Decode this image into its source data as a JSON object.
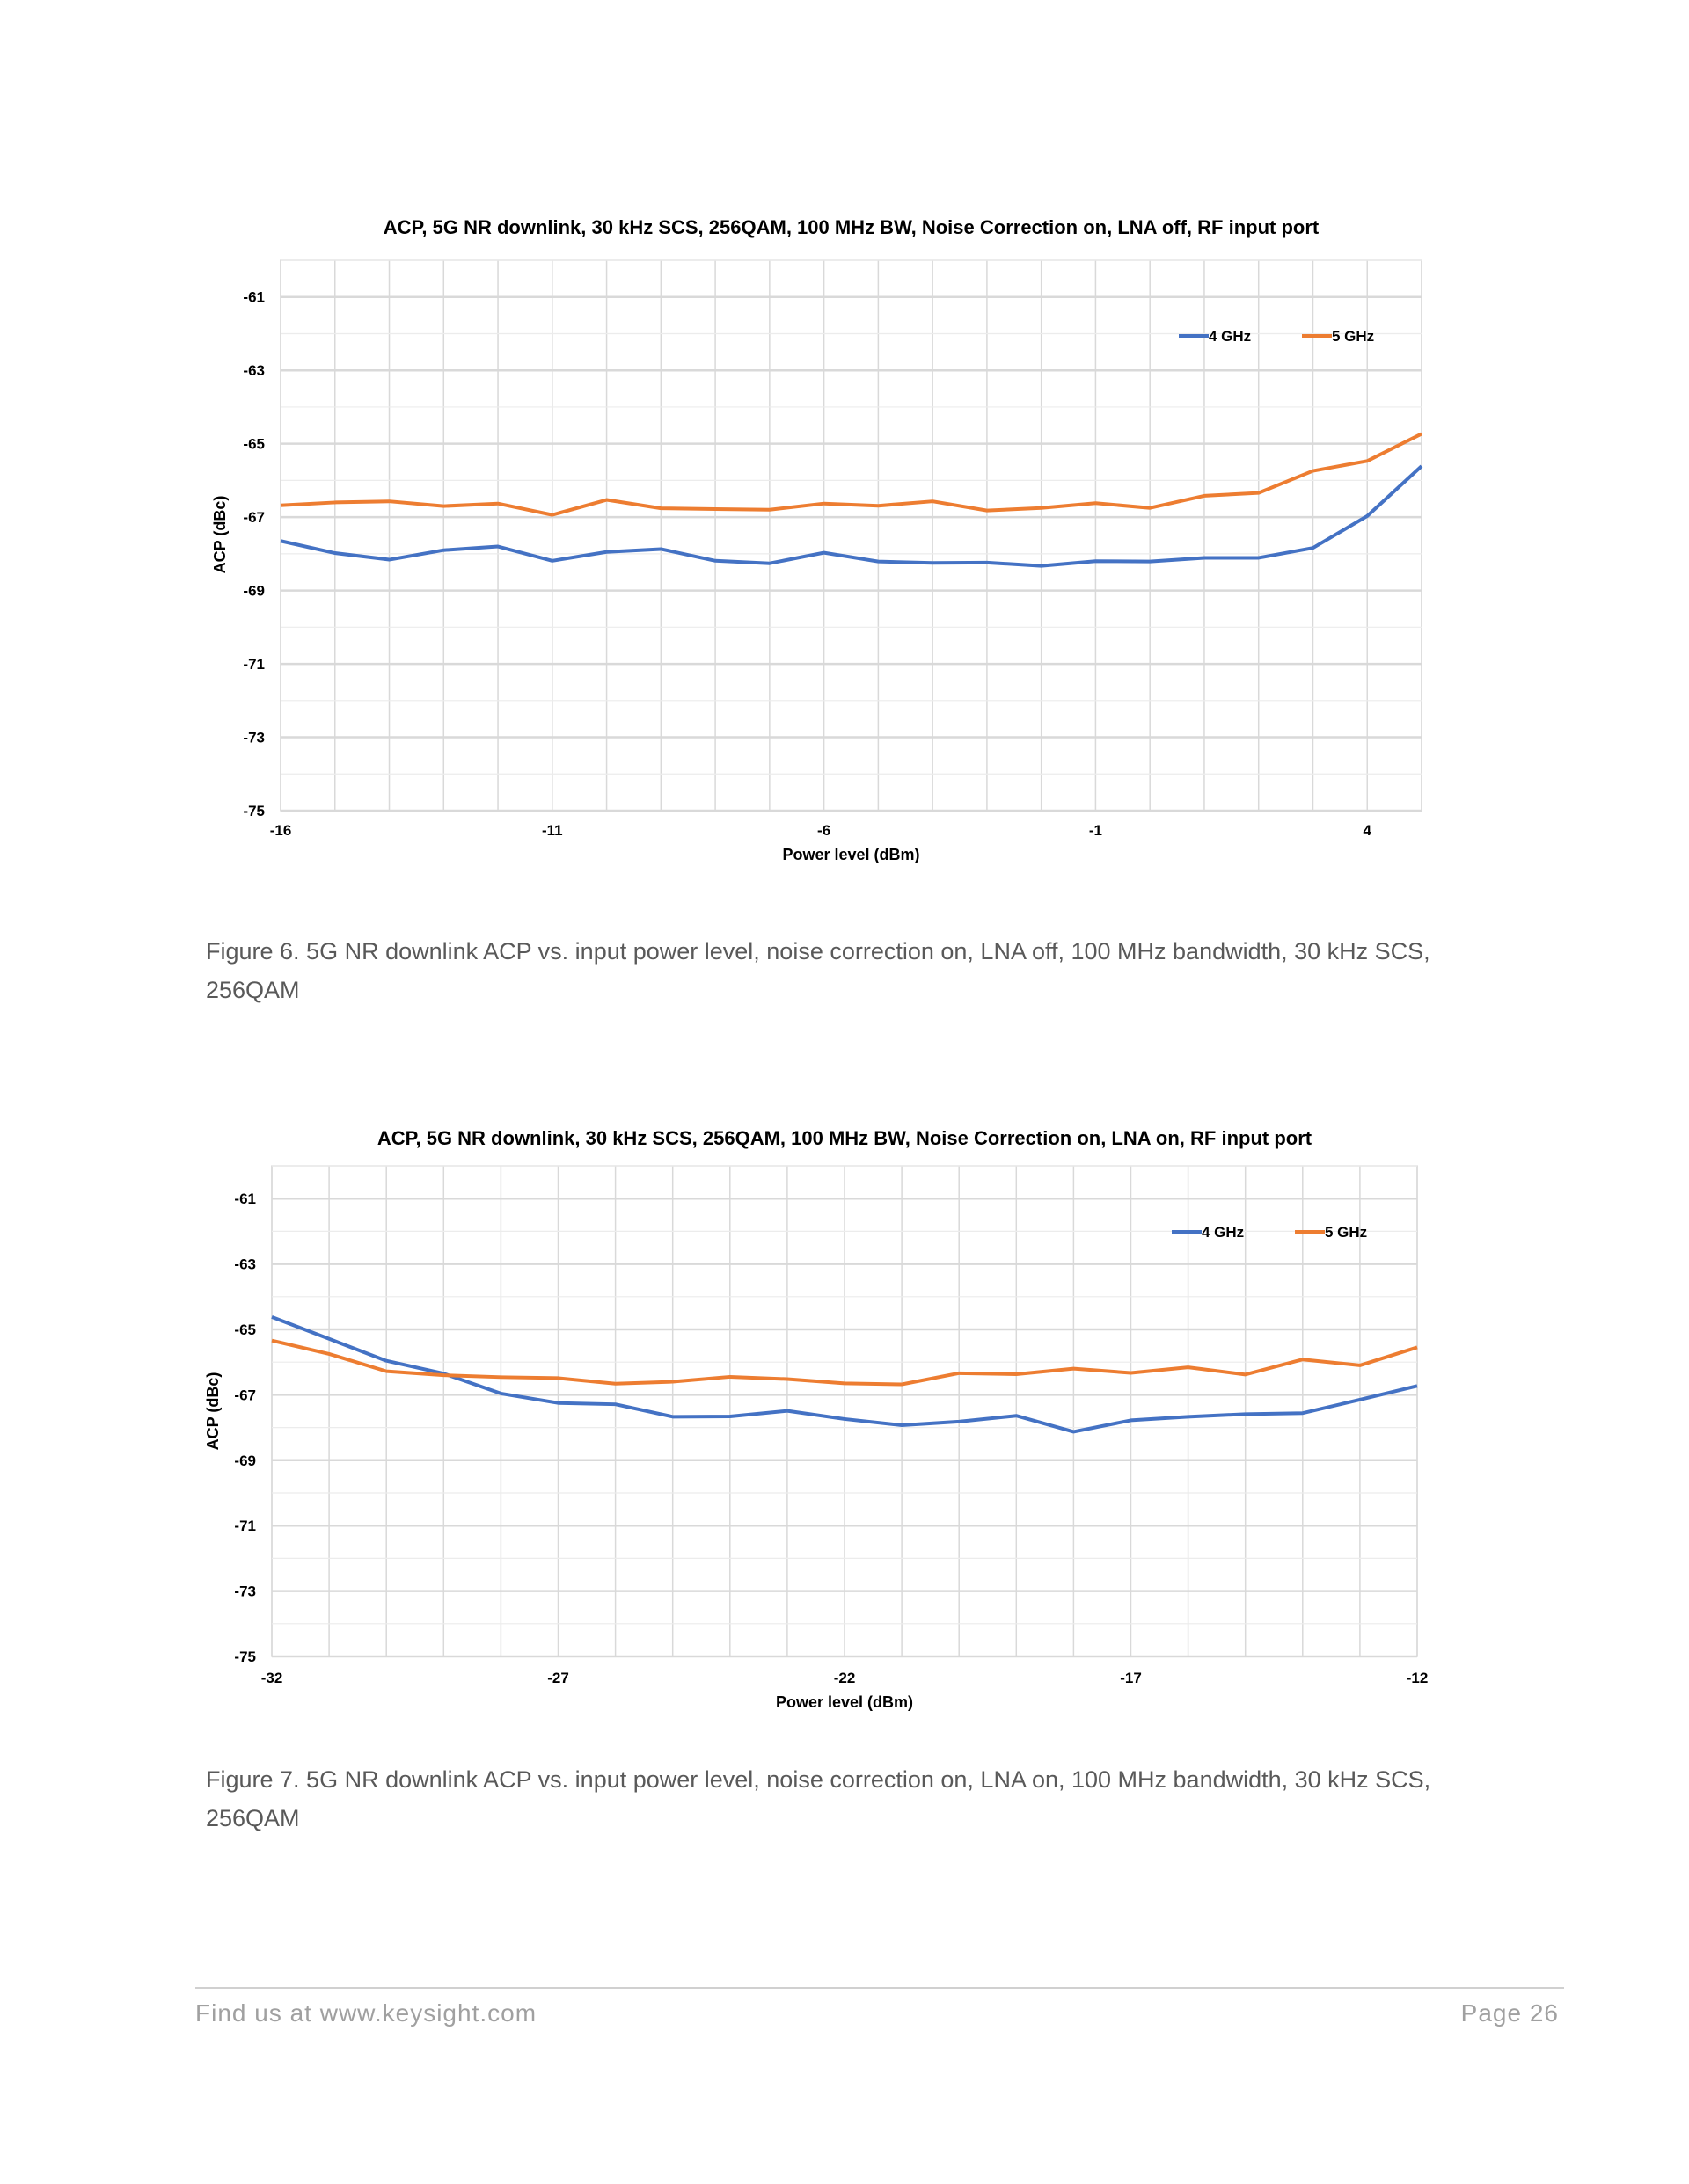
{
  "chart_data": [
    {
      "type": "line",
      "title": "ACP, 5G NR downlink, 30 kHz SCS, 256QAM, 100 MHz BW, Noise Correction on, LNA off, RF input port",
      "xlabel": "Power level (dBm)",
      "ylabel": "ACP (dBc)",
      "xlim": [
        -16,
        5
      ],
      "ylim": [
        -75,
        -60
      ],
      "xticks": [
        "-16",
        "-11",
        "-6",
        "-1",
        "4"
      ],
      "yticks": [
        "-61",
        "-63",
        "-65",
        "-67",
        "-69",
        "-71",
        "-73",
        "-75"
      ],
      "grid": true,
      "legend_position": "top-right",
      "x": [
        -16,
        -15,
        -14,
        -13,
        -12,
        -11,
        -10,
        -9,
        -8,
        -7,
        -6,
        -5,
        -4,
        -3,
        -2,
        -1,
        0,
        1,
        2,
        3,
        4,
        5
      ],
      "series": [
        {
          "name": "4 GHz",
          "color": "#4472C4",
          "values": [
            -67.65,
            -67.98,
            -68.16,
            -67.9,
            -67.8,
            -68.19,
            -67.95,
            -67.87,
            -68.19,
            -68.26,
            -67.97,
            -68.21,
            -68.25,
            -68.24,
            -68.33,
            -68.2,
            -68.21,
            -68.11,
            -68.11,
            -67.84,
            -66.97,
            -65.61
          ]
        },
        {
          "name": "5 GHz",
          "color": "#ED7D31",
          "values": [
            -66.68,
            -66.6,
            -66.57,
            -66.7,
            -66.63,
            -66.94,
            -66.53,
            -66.76,
            -66.78,
            -66.8,
            -66.63,
            -66.69,
            -66.57,
            -66.82,
            -66.75,
            -66.62,
            -66.75,
            -66.42,
            -66.34,
            -65.74,
            -65.47,
            -64.73
          ]
        }
      ]
    },
    {
      "type": "line",
      "title": "ACP, 5G NR downlink, 30 kHz SCS, 256QAM, 100 MHz BW, Noise Correction on, LNA on, RF input port",
      "xlabel": "Power level (dBm)",
      "ylabel": "ACP (dBc)",
      "xlim": [
        -32,
        -12
      ],
      "ylim": [
        -75,
        -60
      ],
      "xticks": [
        "-32",
        "-27",
        "-22",
        "-17",
        "-12"
      ],
      "yticks": [
        "-61",
        "-63",
        "-65",
        "-67",
        "-69",
        "-71",
        "-73",
        "-75"
      ],
      "grid": true,
      "legend_position": "top-right",
      "x": [
        -32,
        -31,
        -30,
        -29,
        -28,
        -27,
        -26,
        -25,
        -24,
        -23,
        -22,
        -21,
        -20,
        -19,
        -18,
        -17,
        -16,
        -15,
        -14,
        -13,
        -12
      ],
      "series": [
        {
          "name": "4 GHz",
          "color": "#4472C4",
          "values": [
            -64.62,
            -65.29,
            -65.96,
            -66.35,
            -66.96,
            -67.25,
            -67.29,
            -67.67,
            -67.66,
            -67.49,
            -67.74,
            -67.93,
            -67.82,
            -67.64,
            -68.13,
            -67.78,
            -67.67,
            -67.59,
            -67.56,
            -67.15,
            -66.73
          ]
        },
        {
          "name": "5 GHz",
          "color": "#ED7D31",
          "values": [
            -65.34,
            -65.75,
            -66.28,
            -66.4,
            -66.46,
            -66.49,
            -66.66,
            -66.6,
            -66.45,
            -66.52,
            -66.65,
            -66.68,
            -66.34,
            -66.37,
            -66.2,
            -66.33,
            -66.16,
            -66.38,
            -65.92,
            -66.1,
            -65.55
          ]
        }
      ]
    }
  ],
  "captions": [
    "Figure 6. 5G NR downlink ACP vs. input power level, noise correction on, LNA off, 100 MHz bandwidth, 30 kHz SCS, 256QAM",
    "Figure 7. 5G NR downlink ACP vs. input power level, noise correction on, LNA on, 100 MHz bandwidth, 30 kHz SCS, 256QAM"
  ],
  "footer": {
    "left": "Find us at www.keysight.com",
    "right": "Page 26"
  }
}
